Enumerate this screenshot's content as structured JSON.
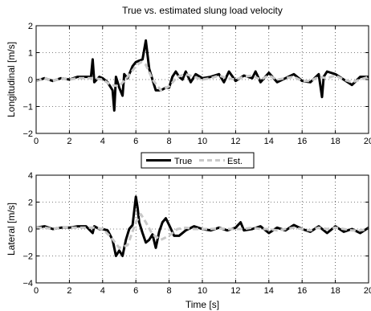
{
  "chart_data": [
    {
      "type": "line",
      "title": "True vs. estimated slung load velocity",
      "xlabel": "",
      "ylabel": "Longitudinal [m/s]",
      "xlim": [
        0,
        20
      ],
      "ylim": [
        -2,
        2
      ],
      "xticks": [
        "0",
        "2",
        "4",
        "6",
        "8",
        "10",
        "12",
        "14",
        "16",
        "18",
        "20"
      ],
      "yticks": [
        "−2",
        "−1",
        "0",
        "1",
        "2"
      ],
      "grid": true,
      "series": [
        {
          "name": "True",
          "color": "#000000",
          "x": [
            0,
            0.5,
            1,
            1.5,
            2,
            2.5,
            3,
            3.3,
            3.4,
            3.5,
            3.8,
            4,
            4.3,
            4.6,
            4.7,
            4.8,
            5,
            5.2,
            5.3,
            5.5,
            5.8,
            6,
            6.2,
            6.4,
            6.6,
            6.8,
            6.9,
            7,
            7.2,
            7.5,
            7.8,
            8,
            8.2,
            8.4,
            8.6,
            8.8,
            9,
            9.3,
            9.6,
            10,
            10.5,
            11,
            11.3,
            11.6,
            12,
            12.5,
            13,
            13.2,
            13.5,
            14,
            14.5,
            15,
            15.5,
            16,
            16.5,
            17,
            17.2,
            17.3,
            17.5,
            18,
            18.5,
            19,
            19.5,
            20
          ],
          "y": [
            -0.05,
            0.05,
            -0.05,
            0.05,
            0.0,
            0.1,
            0.1,
            0.1,
            0.75,
            -0.1,
            0.1,
            0.05,
            -0.1,
            -0.4,
            -1.15,
            0.1,
            -0.3,
            -0.6,
            0.2,
            0.05,
            0.5,
            0.65,
            0.7,
            0.75,
            1.45,
            0.4,
            0.2,
            0.0,
            -0.4,
            -0.4,
            -0.3,
            -0.3,
            0.1,
            0.3,
            0.1,
            0.0,
            0.3,
            -0.1,
            0.2,
            0.05,
            0.1,
            0.2,
            -0.1,
            0.3,
            -0.05,
            0.15,
            0.05,
            0.3,
            -0.1,
            0.25,
            -0.1,
            0.05,
            0.2,
            -0.05,
            -0.1,
            0.2,
            -0.65,
            0.1,
            0.3,
            0.2,
            0.0,
            -0.2,
            0.1,
            0.1
          ]
        },
        {
          "name": "Est.",
          "color": "#c8c8c8",
          "x": [
            0,
            0.5,
            1,
            1.5,
            2,
            2.5,
            3,
            3.5,
            4,
            4.5,
            5,
            5.5,
            6,
            6.3,
            6.6,
            7,
            7.5,
            8,
            8.5,
            9,
            9.5,
            10,
            10.5,
            11,
            11.5,
            12,
            12.5,
            13,
            13.5,
            14,
            14.5,
            15,
            15.5,
            16,
            16.5,
            17,
            17.5,
            18,
            18.5,
            19,
            19.5,
            20
          ],
          "y": [
            -0.05,
            0.05,
            -0.05,
            0.05,
            0.0,
            0.05,
            0.05,
            0.05,
            0.0,
            -0.2,
            -0.25,
            0.1,
            0.5,
            0.65,
            0.55,
            0.0,
            -0.4,
            -0.25,
            0.1,
            0.2,
            0.1,
            0.0,
            0.05,
            0.15,
            0.05,
            0.0,
            0.1,
            0.15,
            0.0,
            0.15,
            0.0,
            0.05,
            0.1,
            -0.05,
            -0.05,
            0.1,
            0.05,
            0.15,
            0.0,
            -0.1,
            0.0,
            0.1
          ]
        }
      ]
    },
    {
      "type": "line",
      "title": "",
      "xlabel": "Time [s]",
      "ylabel": "Lateral [m/s]",
      "xlim": [
        0,
        20
      ],
      "ylim": [
        -4,
        4
      ],
      "xticks": [
        "0",
        "2",
        "4",
        "6",
        "8",
        "10",
        "12",
        "14",
        "16",
        "18",
        "20"
      ],
      "yticks": [
        "−4",
        "−2",
        "0",
        "2",
        "4"
      ],
      "grid": true,
      "series": [
        {
          "name": "True",
          "color": "#000000",
          "x": [
            0,
            0.5,
            1,
            1.5,
            2,
            2.5,
            3,
            3.4,
            3.5,
            3.8,
            4,
            4.3,
            4.6,
            4.8,
            5,
            5.2,
            5.4,
            5.6,
            5.8,
            6,
            6.1,
            6.2,
            6.4,
            6.6,
            6.8,
            7,
            7.2,
            7.4,
            7.6,
            7.8,
            8,
            8.3,
            8.6,
            9,
            9.5,
            10,
            10.5,
            11,
            11.5,
            12,
            12.3,
            12.5,
            13,
            13.5,
            14,
            14.5,
            15,
            15.5,
            16,
            16.5,
            17,
            17.5,
            18,
            18.5,
            19,
            19.5,
            20
          ],
          "y": [
            0.1,
            0.2,
            0.0,
            0.1,
            0.1,
            0.2,
            0.2,
            -0.3,
            0.2,
            0.0,
            0.0,
            -0.1,
            -0.8,
            -2.0,
            -1.6,
            -2.0,
            -0.8,
            0.0,
            0.3,
            2.4,
            1.6,
            0.5,
            -0.3,
            -1.0,
            -0.8,
            -0.4,
            -1.4,
            -0.2,
            0.5,
            0.8,
            0.3,
            -0.5,
            -0.5,
            -0.1,
            0.2,
            0.0,
            -0.1,
            0.1,
            -0.1,
            0.1,
            0.5,
            -0.1,
            0.0,
            0.2,
            -0.3,
            0.1,
            -0.1,
            0.3,
            0.0,
            -0.2,
            0.2,
            -0.3,
            0.2,
            -0.2,
            0.0,
            -0.3,
            0.1
          ]
        },
        {
          "name": "Est.",
          "color": "#c8c8c8",
          "x": [
            0,
            0.5,
            1,
            1.5,
            2,
            2.5,
            3,
            3.5,
            4,
            4.5,
            5,
            5.5,
            6,
            6.3,
            6.6,
            7,
            7.5,
            8,
            8.5,
            9,
            9.5,
            10,
            10.5,
            11,
            11.5,
            12,
            12.5,
            13,
            13.5,
            14,
            14.5,
            15,
            15.5,
            16,
            16.5,
            17,
            17.5,
            18,
            18.5,
            19,
            19.5,
            20
          ],
          "y": [
            0.1,
            0.1,
            0.0,
            0.1,
            0.1,
            0.1,
            0.1,
            0.1,
            0.0,
            -0.6,
            -1.4,
            -1.2,
            0.5,
            1.1,
            0.5,
            -0.4,
            -0.8,
            -0.5,
            0.0,
            0.1,
            0.0,
            0.0,
            0.0,
            0.05,
            0.0,
            0.0,
            0.0,
            0.1,
            0.0,
            0.0,
            -0.1,
            0.0,
            0.1,
            0.0,
            -0.1,
            0.1,
            0.0,
            0.1,
            0.0,
            -0.1,
            -0.1,
            0.0
          ]
        }
      ]
    }
  ],
  "legend": {
    "placement": "between-plots",
    "entries": [
      {
        "label": "True",
        "color": "#000000",
        "style": "solid"
      },
      {
        "label": "Est.",
        "color": "#c8c8c8",
        "style": "dashed"
      }
    ]
  }
}
